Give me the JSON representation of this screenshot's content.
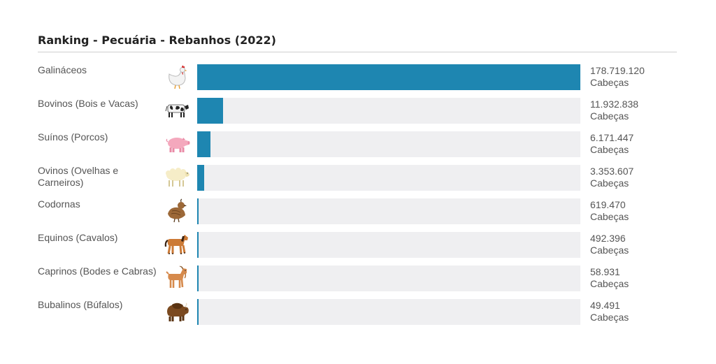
{
  "chart_data": {
    "type": "bar",
    "title": "Ranking - Pecuária - Rebanhos (2022)",
    "categories": [
      "Galináceos",
      "Bovinos (Bois e Vacas)",
      "Suínos (Porcos)",
      "Ovinos (Ovelhas e Carneiros)",
      "Codornas",
      "Equinos (Cavalos)",
      "Caprinos (Bodes e Cabras)",
      "Bubalinos (Búfalos)"
    ],
    "values": [
      178719120,
      11932838,
      6171447,
      3353607,
      619470,
      492396,
      58931,
      49491
    ],
    "value_labels": [
      "178.719.120",
      "11.932.838",
      "6.171.447",
      "3.353.607",
      "619.470",
      "492.396",
      "58.931",
      "49.491"
    ],
    "unit": "Cabeças",
    "icons": [
      "chicken-icon",
      "cow-icon",
      "pig-icon",
      "sheep-icon",
      "quail-icon",
      "horse-icon",
      "goat-icon",
      "buffalo-icon"
    ],
    "orientation": "horizontal",
    "bar_color": "#1e86b1",
    "track_color": "#efeff1"
  }
}
